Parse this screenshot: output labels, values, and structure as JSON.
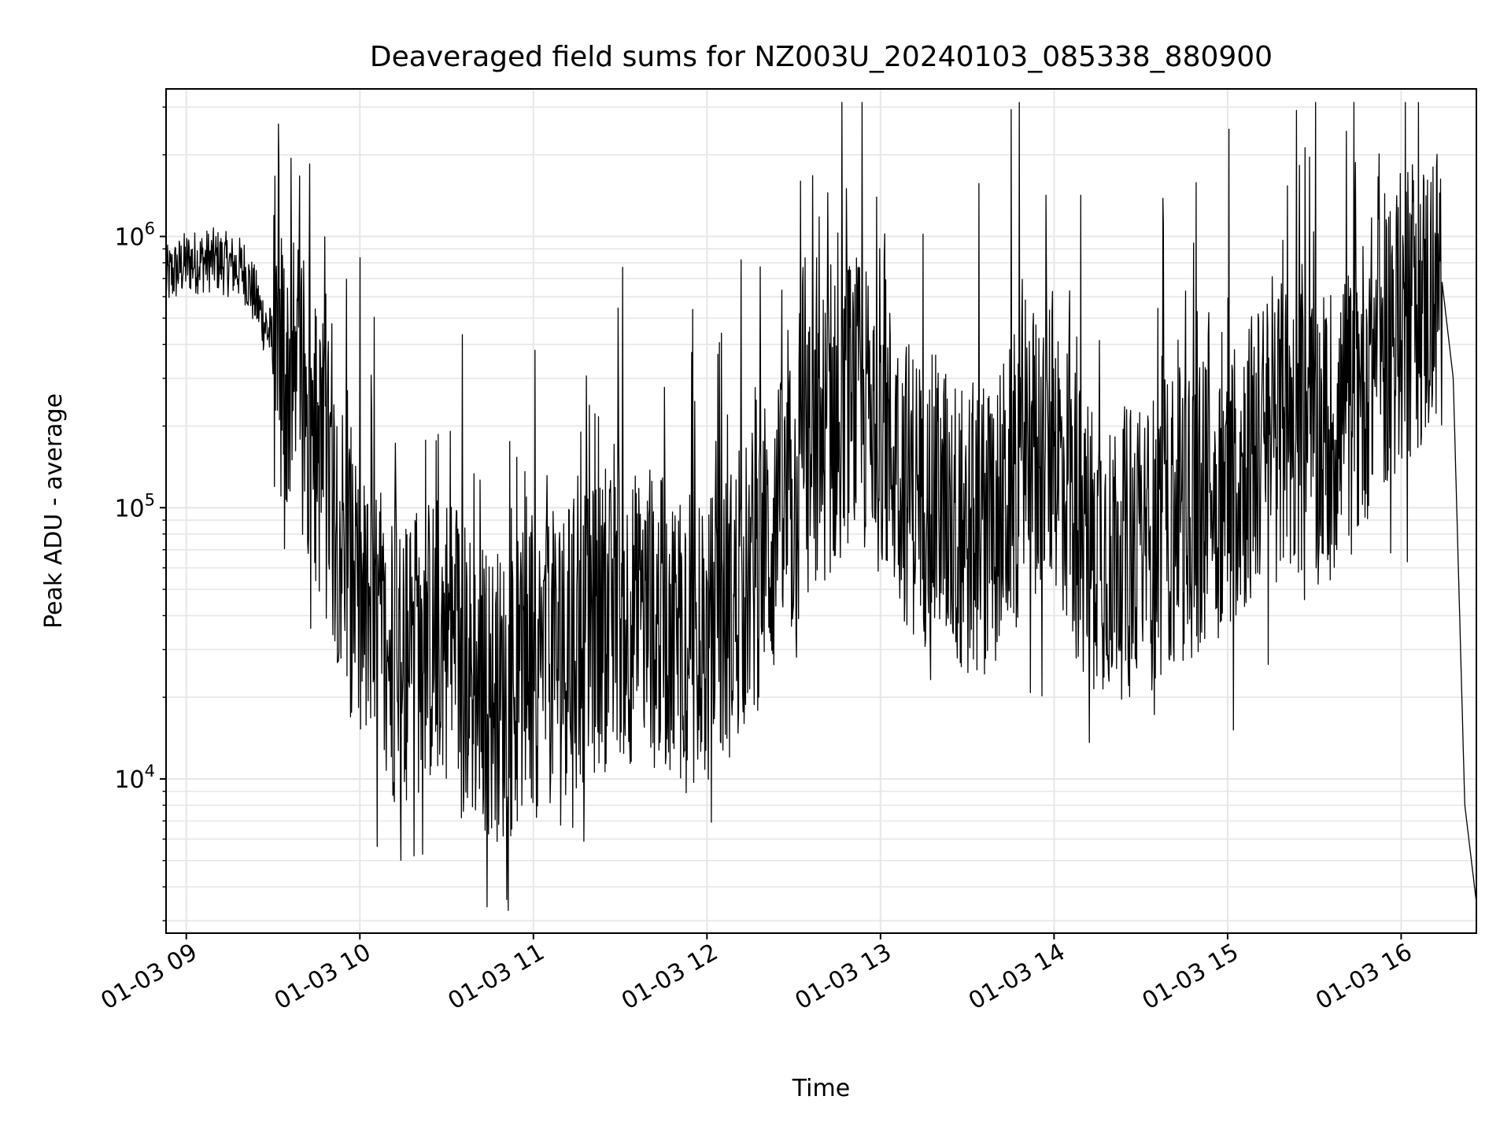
{
  "chart_data": {
    "type": "line",
    "title": "Deaveraged field sums for NZ003U_20240103_085338_880900",
    "xlabel": "Time",
    "ylabel": "Peak ADU - average",
    "yscale": "log",
    "grid": true,
    "legend": "none",
    "line_color": "#000000",
    "x_ticks": [
      "01-03 09",
      "01-03 10",
      "01-03 11",
      "01-03 12",
      "01-03 13",
      "01-03 14",
      "01-03 15",
      "01-03 16"
    ],
    "xlim": [
      "2024-01-03 08:53",
      "2024-01-03 16:26"
    ],
    "ylim": [
      2700,
      3500000
    ],
    "series": [
      {
        "x": [
          "2024-01-03 08:53",
          "2024-01-03 09:00",
          "2024-01-03 09:10",
          "2024-01-03 09:20",
          "2024-01-03 09:30",
          "2024-01-03 09:40",
          "2024-01-03 09:50",
          "2024-01-03 10:00",
          "2024-01-03 10:10",
          "2024-01-03 10:20",
          "2024-01-03 10:30",
          "2024-01-03 10:40",
          "2024-01-03 10:50",
          "2024-01-03 11:00",
          "2024-01-03 11:10",
          "2024-01-03 11:20",
          "2024-01-03 11:30",
          "2024-01-03 11:40",
          "2024-01-03 11:50",
          "2024-01-03 12:00",
          "2024-01-03 12:10",
          "2024-01-03 12:20",
          "2024-01-03 12:30",
          "2024-01-03 12:40",
          "2024-01-03 12:50",
          "2024-01-03 13:00",
          "2024-01-03 13:10",
          "2024-01-03 13:20",
          "2024-01-03 13:30",
          "2024-01-03 13:40",
          "2024-01-03 13:50",
          "2024-01-03 14:00",
          "2024-01-03 14:10",
          "2024-01-03 14:20",
          "2024-01-03 14:30",
          "2024-01-03 14:40",
          "2024-01-03 14:50",
          "2024-01-03 15:00",
          "2024-01-03 15:10",
          "2024-01-03 15:20",
          "2024-01-03 15:30",
          "2024-01-03 15:40",
          "2024-01-03 15:50",
          "2024-01-03 16:00",
          "2024-01-03 16:10",
          "2024-01-03 16:14",
          "2024-01-03 16:18",
          "2024-01-03 16:22",
          "2024-01-03 16:26"
        ],
        "y": [
          700000,
          800000,
          820000,
          750000,
          400000,
          250000,
          120000,
          40000,
          28000,
          30000,
          35000,
          22000,
          20000,
          25000,
          30000,
          35000,
          40000,
          38000,
          35000,
          30000,
          45000,
          70000,
          100000,
          180000,
          250000,
          200000,
          120000,
          100000,
          80000,
          90000,
          150000,
          180000,
          80000,
          70000,
          65000,
          90000,
          100000,
          120000,
          160000,
          200000,
          180000,
          200000,
          350000,
          500000,
          600000,
          700000,
          300000,
          8000,
          3500
        ]
      }
    ]
  }
}
